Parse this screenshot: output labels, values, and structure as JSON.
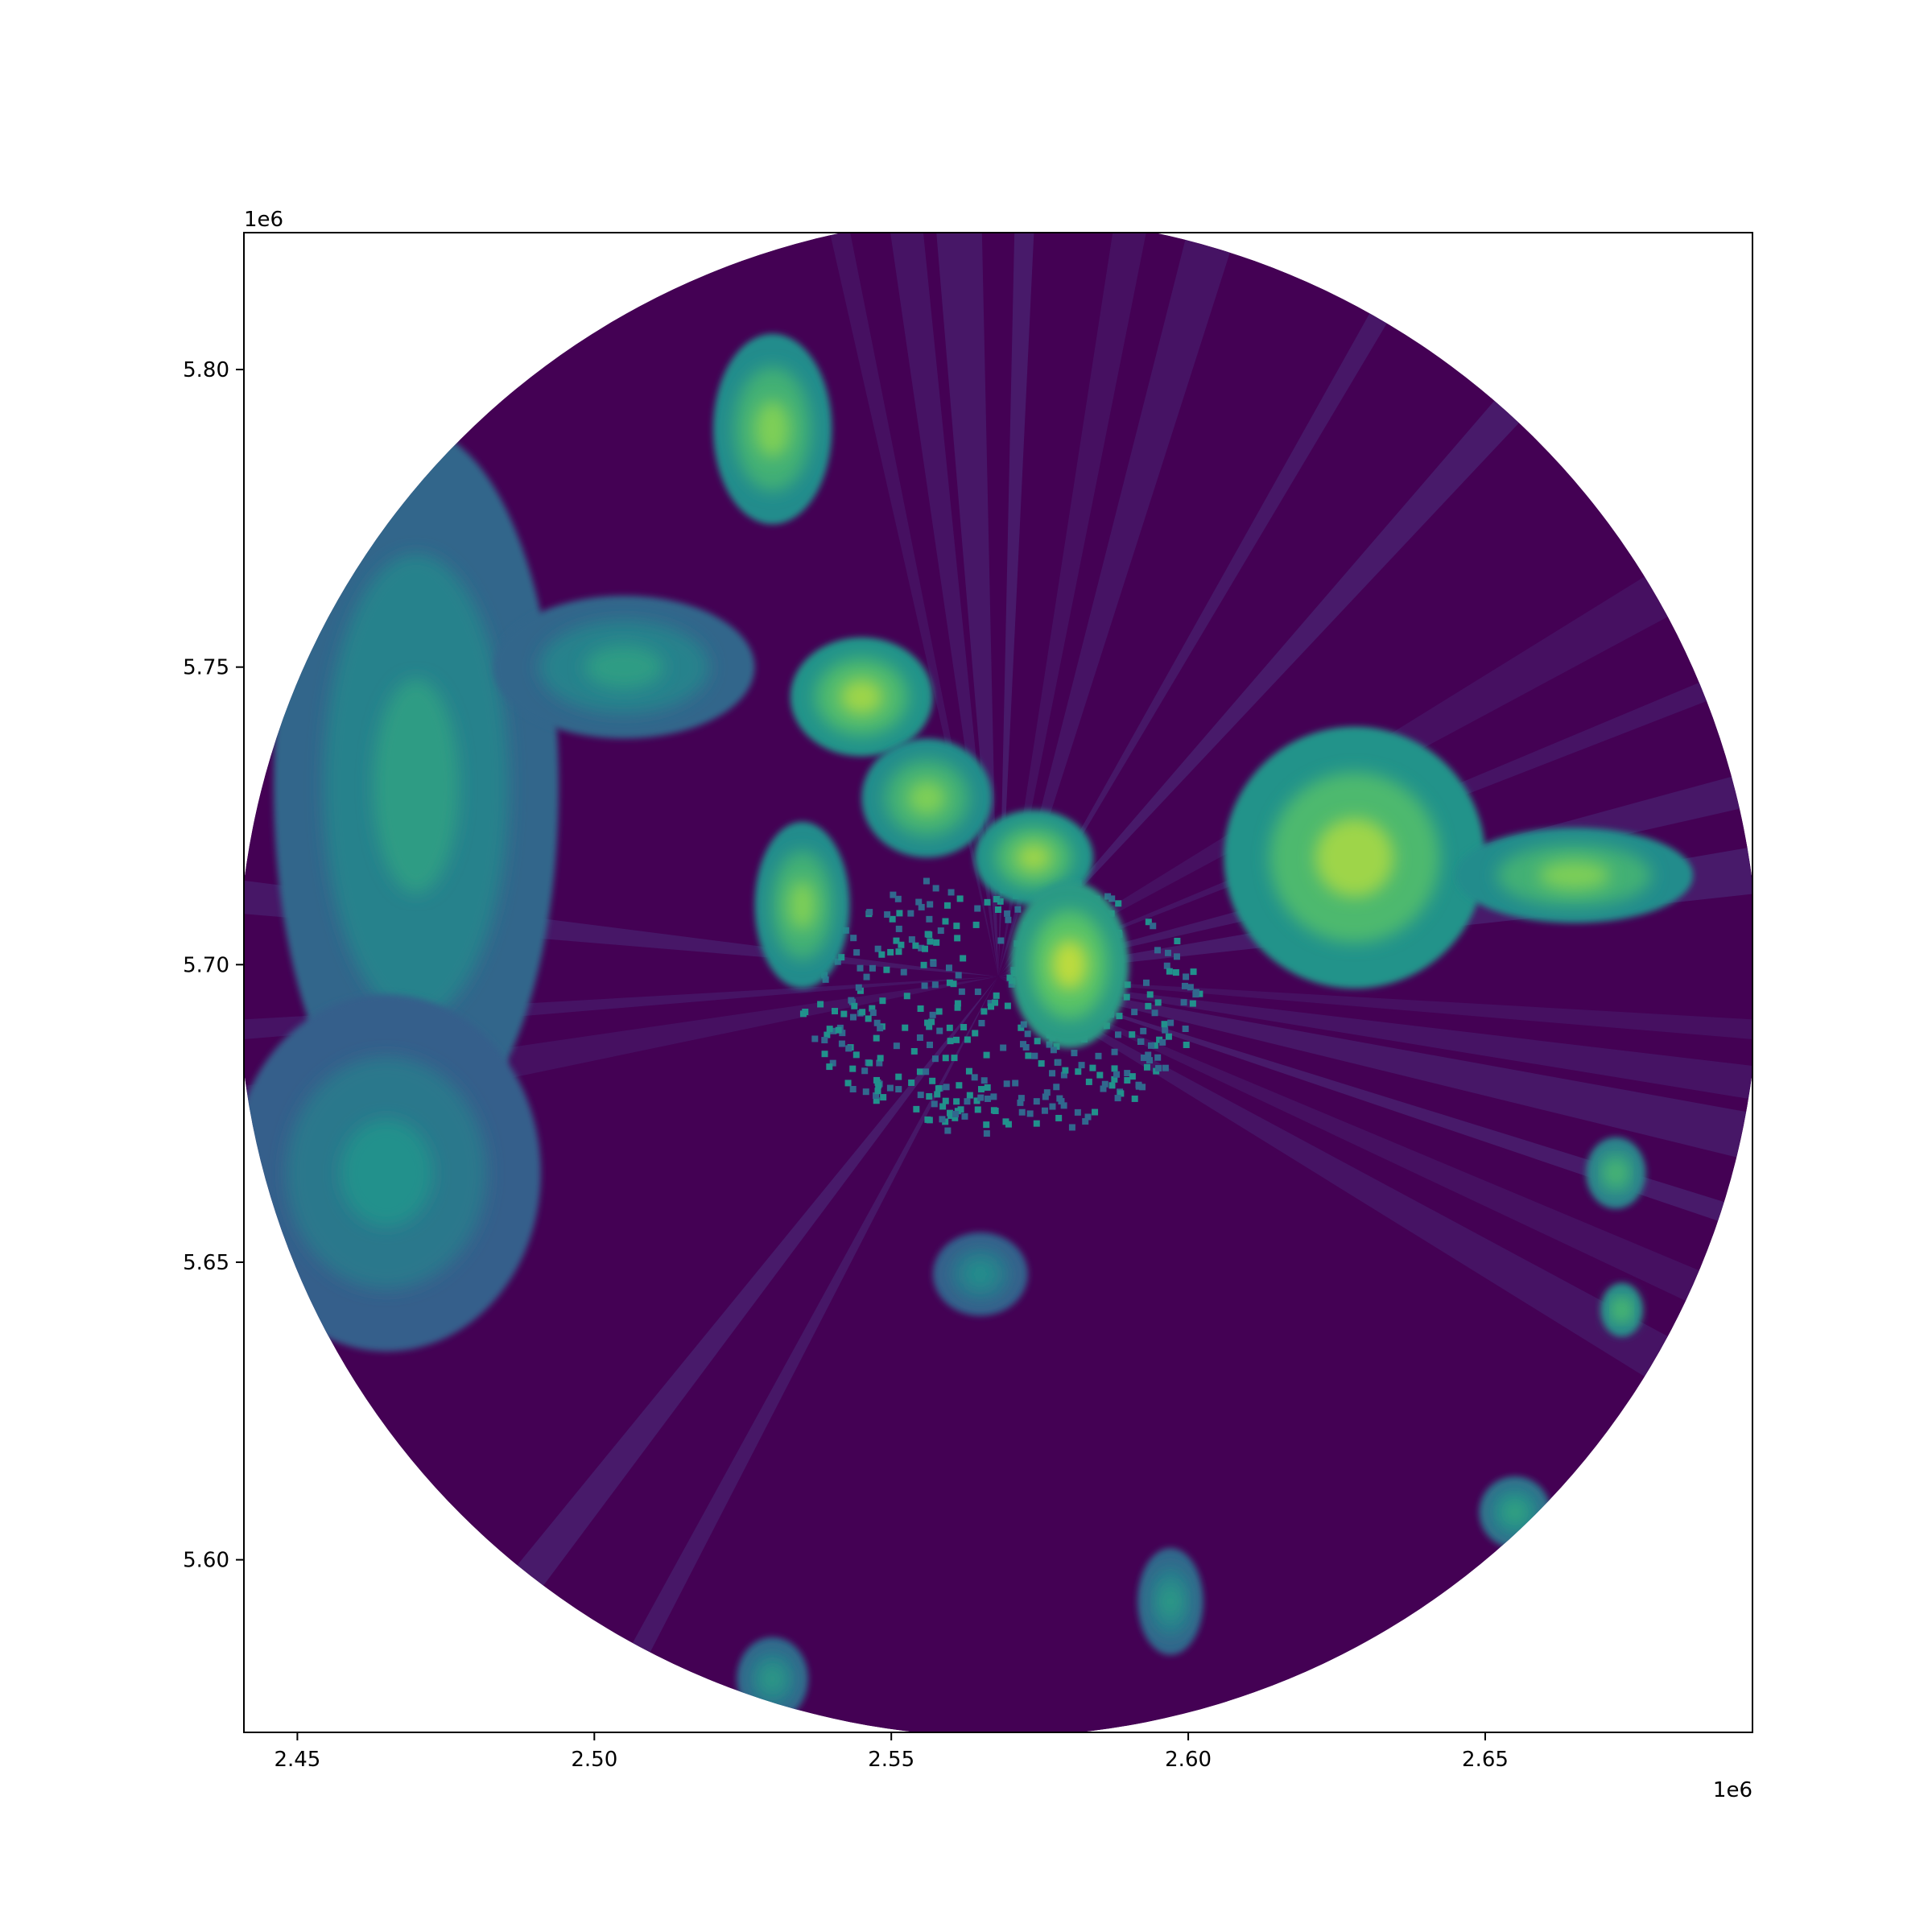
{
  "chart_data": {
    "type": "heatmap",
    "description_free": true,
    "xlim": [
      2441000,
      2695000
    ],
    "ylim": [
      5571000,
      5823000
    ],
    "x_ticks": [
      2450000,
      2500000,
      2550000,
      2600000,
      2650000
    ],
    "x_tick_labels": [
      "2.45",
      "2.50",
      "2.55",
      "2.60",
      "2.65"
    ],
    "y_ticks": [
      5600000,
      5650000,
      5700000,
      5750000,
      5800000
    ],
    "y_tick_labels": [
      "5.60",
      "5.65",
      "5.70",
      "5.75",
      "5.80"
    ],
    "x_offset_label": "1e6",
    "y_offset_label": "1e6",
    "colormap": "viridis",
    "colors": {
      "background": "#440154",
      "clutter": "#31688e",
      "mid": "#21918c",
      "high": "#5ec962",
      "peak": "#fde725"
    },
    "radar": {
      "center": [
        2568000,
        5698000
      ],
      "range_m": 128000
    },
    "echo_cells": [
      {
        "name": "west-band",
        "x": 2470000,
        "y": 5730000,
        "rx": 24000,
        "ry": 60000,
        "level": 0.55
      },
      {
        "name": "southwest-cluster",
        "x": 2465000,
        "y": 5665000,
        "rx": 26000,
        "ry": 30000,
        "level": 0.5
      },
      {
        "name": "north-cell",
        "x": 2530000,
        "y": 5790000,
        "rx": 10000,
        "ry": 16000,
        "level": 0.8
      },
      {
        "name": "northwest-arm",
        "x": 2505000,
        "y": 5750000,
        "rx": 22000,
        "ry": 12000,
        "level": 0.55
      },
      {
        "name": "central-line-1",
        "x": 2545000,
        "y": 5745000,
        "rx": 12000,
        "ry": 10000,
        "level": 0.85
      },
      {
        "name": "central-line-2",
        "x": 2556000,
        "y": 5728000,
        "rx": 11000,
        "ry": 10000,
        "level": 0.8
      },
      {
        "name": "central-line-3",
        "x": 2574000,
        "y": 5718000,
        "rx": 10000,
        "ry": 8000,
        "level": 0.85
      },
      {
        "name": "west-central-cell",
        "x": 2535000,
        "y": 5710000,
        "rx": 8000,
        "ry": 14000,
        "level": 0.8
      },
      {
        "name": "core-cell",
        "x": 2580000,
        "y": 5700000,
        "rx": 10000,
        "ry": 14000,
        "level": 0.9
      },
      {
        "name": "east-cluster",
        "x": 2628000,
        "y": 5718000,
        "rx": 22000,
        "ry": 22000,
        "level": 0.85
      },
      {
        "name": "east-arm",
        "x": 2665000,
        "y": 5715000,
        "rx": 20000,
        "ry": 8000,
        "level": 0.8
      },
      {
        "name": "southeast-cell-1",
        "x": 2672000,
        "y": 5665000,
        "rx": 5000,
        "ry": 6000,
        "level": 0.7
      },
      {
        "name": "southeast-cell-2",
        "x": 2673000,
        "y": 5642000,
        "rx": 3500,
        "ry": 4500,
        "level": 0.75
      },
      {
        "name": "south-cell-1",
        "x": 2565000,
        "y": 5648000,
        "rx": 8000,
        "ry": 7000,
        "level": 0.5
      },
      {
        "name": "south-cell-2",
        "x": 2597000,
        "y": 5593000,
        "rx": 5500,
        "ry": 9000,
        "level": 0.55
      },
      {
        "name": "south-cell-3",
        "x": 2530000,
        "y": 5580000,
        "rx": 6000,
        "ry": 7000,
        "level": 0.55
      },
      {
        "name": "far-southeast-cell",
        "x": 2655000,
        "y": 5608000,
        "rx": 6000,
        "ry": 6000,
        "level": 0.6
      }
    ]
  }
}
